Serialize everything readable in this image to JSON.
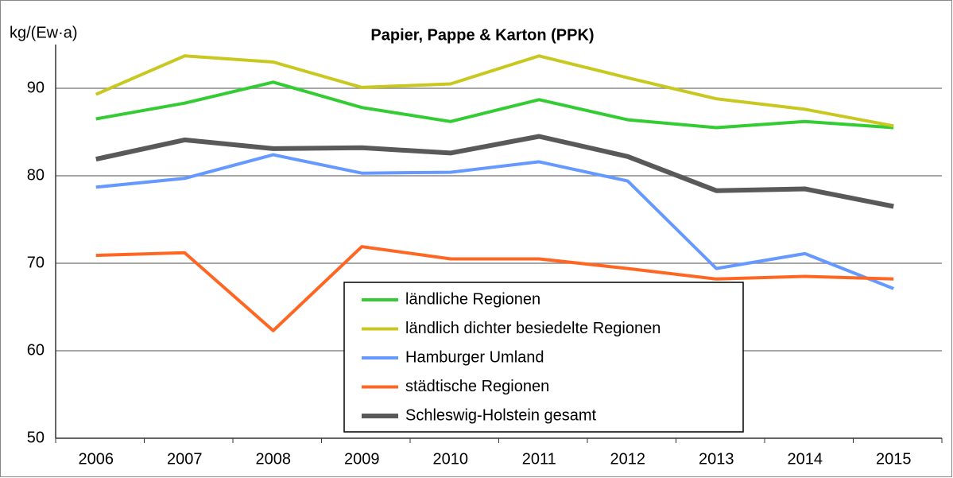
{
  "chart_data": {
    "type": "line",
    "title": "Papier, Pappe & Karton (PPK)",
    "y_label": "kg/(Ew·a)",
    "categories": [
      "2006",
      "2007",
      "2008",
      "2009",
      "2010",
      "2011",
      "2012",
      "2013",
      "2014",
      "2015"
    ],
    "series": [
      {
        "name": "ländliche Regionen",
        "color": "#33cc33",
        "values": [
          86.5,
          88.3,
          90.7,
          87.8,
          86.2,
          88.7,
          86.4,
          85.5,
          86.2,
          85.5
        ]
      },
      {
        "name": "ländlich dichter besiedelte Regionen",
        "color": "#c8c820",
        "values": [
          89.3,
          93.7,
          93.0,
          90.1,
          90.5,
          93.7,
          91.2,
          88.8,
          87.6,
          85.7
        ]
      },
      {
        "name": "Hamburger Umland",
        "color": "#6699ff",
        "values": [
          78.7,
          79.7,
          82.4,
          80.3,
          80.4,
          81.6,
          79.4,
          69.4,
          71.1,
          67.1
        ]
      },
      {
        "name": "städtische Regionen",
        "color": "#ff6622",
        "values": [
          70.9,
          71.2,
          62.3,
          71.9,
          70.5,
          70.5,
          69.4,
          68.2,
          68.5,
          68.2
        ]
      },
      {
        "name": "Schleswig-Holstein gesamt",
        "color": "#595959",
        "values": [
          81.9,
          84.1,
          83.1,
          83.2,
          82.6,
          84.5,
          82.2,
          78.3,
          78.5,
          76.5
        ]
      }
    ],
    "ylim": [
      50,
      95
    ],
    "yticks": [
      50,
      60,
      70,
      80,
      90
    ],
    "grid": true
  }
}
